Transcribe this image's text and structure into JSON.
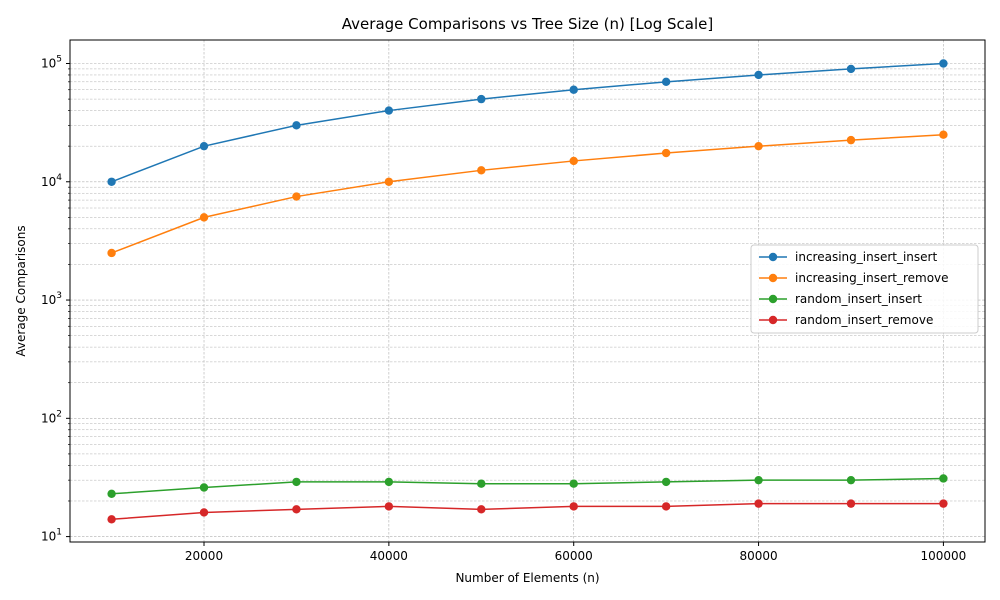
{
  "chart_data": {
    "type": "line",
    "title": "Average Comparisons vs Tree Size (n) [Log Scale]",
    "xlabel": "Number of Elements (n)",
    "ylabel": "Average Comparisons",
    "x": [
      10000,
      20000,
      30000,
      40000,
      50000,
      60000,
      70000,
      80000,
      90000,
      100000
    ],
    "x_ticks": [
      20000,
      40000,
      60000,
      80000,
      100000
    ],
    "x_tick_labels": [
      "20000",
      "40000",
      "60000",
      "80000",
      "100000"
    ],
    "xlim": [
      5500,
      104500
    ],
    "y_scale": "log",
    "ylim": [
      9,
      158000
    ],
    "y_ticks": [
      10,
      100,
      1000,
      10000,
      100000
    ],
    "y_tick_base": "10",
    "y_tick_exponents": [
      "1",
      "2",
      "3",
      "4",
      "5"
    ],
    "grid": true,
    "legend_position": "center-right",
    "series": [
      {
        "name": "increasing_insert_insert",
        "color": "#1f77b4",
        "values": [
          10000,
          20000,
          30000,
          40000,
          50000,
          60000,
          70000,
          80000,
          90000,
          100000
        ]
      },
      {
        "name": "increasing_insert_remove",
        "color": "#ff7f0e",
        "values": [
          2500,
          5000,
          7500,
          10000,
          12500,
          15000,
          17500,
          20000,
          22500,
          25000
        ]
      },
      {
        "name": "random_insert_insert",
        "color": "#2ca02c",
        "values": [
          23,
          26,
          29,
          29,
          28,
          28,
          29,
          30,
          30,
          31
        ]
      },
      {
        "name": "random_insert_remove",
        "color": "#d62728",
        "values": [
          14,
          16,
          17,
          18,
          17,
          18,
          18,
          19,
          19,
          19
        ]
      }
    ]
  }
}
